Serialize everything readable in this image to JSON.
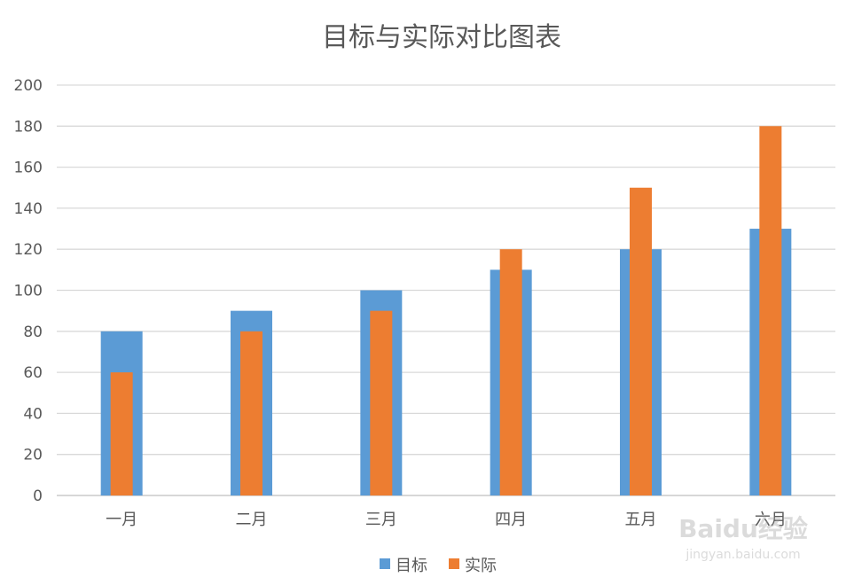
{
  "chart_data": {
    "type": "bar",
    "title": "目标与实际对比图表",
    "categories": [
      "一月",
      "二月",
      "三月",
      "四月",
      "五月",
      "六月"
    ],
    "series": [
      {
        "name": "目标",
        "values": [
          80,
          90,
          100,
          110,
          120,
          130
        ],
        "color": "#5b9bd5"
      },
      {
        "name": "实际",
        "values": [
          60,
          80,
          90,
          120,
          150,
          180
        ],
        "color": "#ed7d31"
      }
    ],
    "ylim": [
      0,
      200
    ],
    "yticks": [
      0,
      20,
      40,
      60,
      80,
      100,
      120,
      140,
      160,
      180,
      200
    ],
    "grid": true,
    "legend_position": "bottom",
    "overlap": true
  },
  "watermark": {
    "text": "Baidu经验",
    "subtext": "jingyan.baidu.com"
  }
}
